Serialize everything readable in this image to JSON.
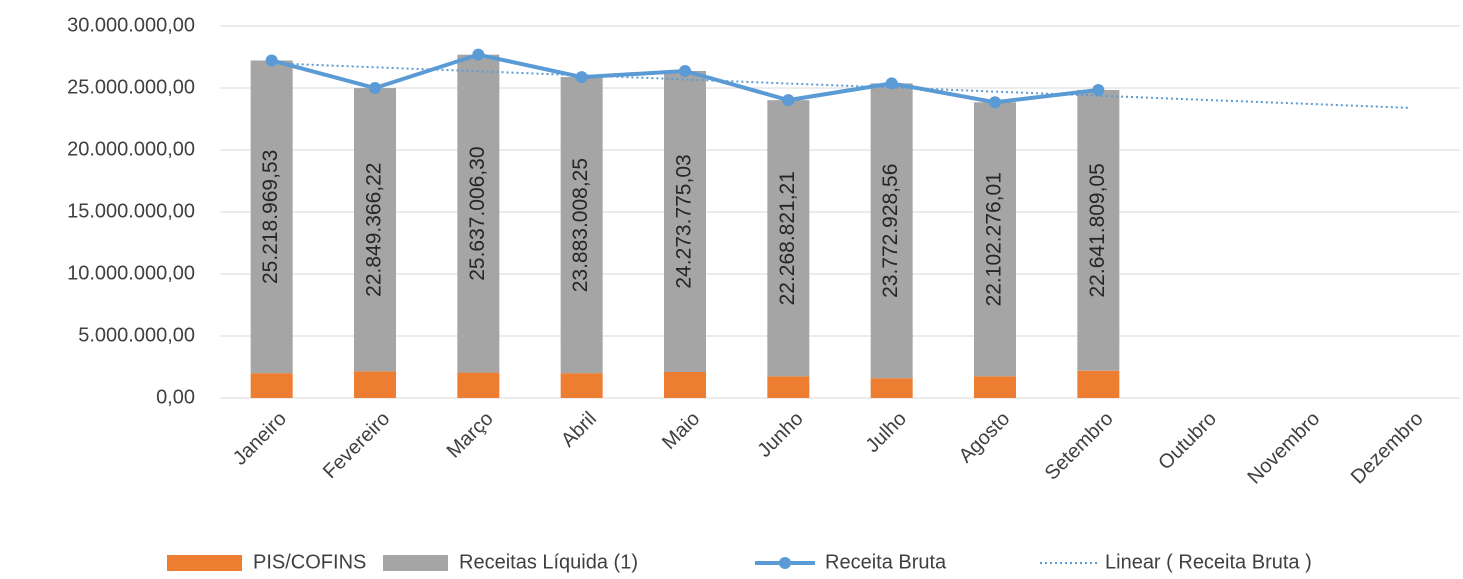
{
  "chart_data": {
    "type": "bar",
    "categories": [
      "Janeiro",
      "Fevereiro",
      "Março",
      "Abril",
      "Maio",
      "Junho",
      "Julho",
      "Agosto",
      "Setembro",
      "Outubro",
      "Novembro",
      "Dezembro"
    ],
    "series": [
      {
        "name": "PIS/COFINS",
        "color": "#ed7d31",
        "values": [
          2000000,
          2150000,
          2050000,
          2000000,
          2100000,
          1750000,
          1600000,
          1750000,
          2200000,
          null,
          null,
          null
        ]
      },
      {
        "name": "Receitas Líquida (1)",
        "color": "#a5a5a5",
        "values": [
          25218969.53,
          22849366.22,
          25637006.3,
          23883008.25,
          24273775.03,
          22268821.21,
          23772928.56,
          22102276.01,
          22641809.05,
          null,
          null,
          null
        ],
        "value_labels": [
          "25.218.969,53",
          "22.849.366,22",
          "25.637.006,30",
          "23.883.008,25",
          "24.273.775,03",
          "22.268.821,21",
          "23.772.928,56",
          "22.102.276,01",
          "22.641.809,05",
          null,
          null,
          null
        ]
      },
      {
        "name": "Receita Bruta",
        "color": "#5b9bd5",
        "values": [
          27220000,
          25000000,
          27690000,
          25880000,
          26370000,
          24020000,
          25370000,
          23850000,
          24840000,
          null,
          null,
          null
        ]
      },
      {
        "name": "Linear ( Receita Bruta )",
        "color": "#5b9bd5",
        "values": [
          27000000,
          26670000,
          26350000,
          26020000,
          25690000,
          25360000,
          25040000,
          24710000,
          24380000,
          24050000,
          23730000,
          23400000
        ]
      }
    ],
    "ylim": [
      0,
      30000000
    ],
    "yticks": [
      {
        "value": 0,
        "label": "0,00"
      },
      {
        "value": 5000000,
        "label": "5.000.000,00"
      },
      {
        "value": 10000000,
        "label": "10.000.000,00"
      },
      {
        "value": 15000000,
        "label": "15.000.000,00"
      },
      {
        "value": 20000000,
        "label": "20.000.000,00"
      },
      {
        "value": 25000000,
        "label": "25.000.000,00"
      },
      {
        "value": 30000000,
        "label": "30.000.000,00"
      }
    ],
    "grid": true,
    "legend": "bottom"
  }
}
